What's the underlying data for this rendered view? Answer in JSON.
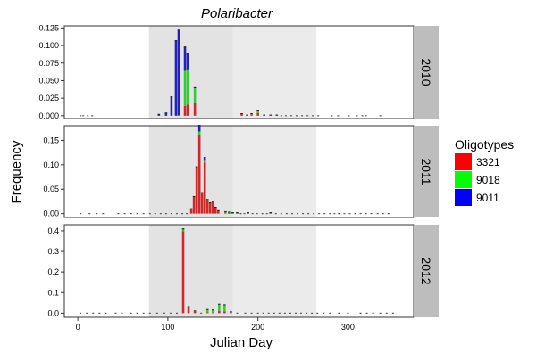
{
  "chart_data": {
    "type": "bar",
    "stacked": true,
    "title": "Polaribacter",
    "xlabel": "Julian Day",
    "ylabel": "Frequency",
    "xlim": [
      -15,
      373
    ],
    "x_ticks": [
      0,
      100,
      200,
      300
    ],
    "x_tick_labels": [
      "0",
      "100",
      "200",
      "300"
    ],
    "shaded_periods": [
      {
        "x": [
          79,
          172
        ],
        "color": "#e3e3e3"
      },
      {
        "x": [
          172,
          265
        ],
        "color": "#ebebeb"
      }
    ],
    "legend": {
      "title": "Oligotypes",
      "placement": "right",
      "entries": [
        {
          "label": "3321",
          "color": "#ff0000"
        },
        {
          "label": "9018",
          "color": "#00ff00"
        },
        {
          "label": "9011",
          "color": "#0000ff"
        }
      ]
    },
    "series_order": [
      "3321",
      "9018",
      "9011"
    ],
    "series_colors": {
      "3321": "#cc2a2a",
      "9018": "#33cc33",
      "9011": "#2222bb"
    },
    "facets": [
      {
        "label": "2010",
        "ylim": [
          -0.004,
          0.128
        ],
        "y_ticks": [
          0,
          0.025,
          0.05,
          0.075,
          0.1,
          0.125
        ],
        "y_tick_labels": [
          "0.000",
          "0.025",
          "0.050",
          "0.075",
          "0.100",
          "0.125"
        ],
        "bars": [
          {
            "x": 90,
            "v": [
              0,
              0,
              0.002
            ]
          },
          {
            "x": 98,
            "v": [
              0,
              0,
              0.004
            ]
          },
          {
            "x": 104,
            "v": [
              0,
              0,
              0.027
            ]
          },
          {
            "x": 109,
            "v": [
              0,
              0,
              0.107
            ]
          },
          {
            "x": 112,
            "v": [
              0.001,
              0,
              0.121
            ]
          },
          {
            "x": 119,
            "v": [
              0.014,
              0.05,
              0.034
            ]
          },
          {
            "x": 122,
            "v": [
              0.016,
              0.05,
              0.022
            ]
          },
          {
            "x": 130,
            "v": [
              0.018,
              0.021,
              0.001
            ]
          },
          {
            "x": 182,
            "v": [
              0.003,
              0,
              0
            ]
          },
          {
            "x": 188,
            "v": [
              0.001,
              0,
              0
            ]
          },
          {
            "x": 193,
            "v": [
              0.002,
              0.001,
              0
            ]
          },
          {
            "x": 200,
            "v": [
              0.004,
              0.003,
              0.001
            ]
          },
          {
            "x": 207,
            "v": [
              0.001,
              0,
              0
            ]
          },
          {
            "x": 214,
            "v": [
              0.001,
              0,
              0
            ]
          },
          {
            "x": 221,
            "v": [
              0.001,
              0,
              0
            ]
          }
        ],
        "zero_days": [
          3,
          6,
          11,
          16,
          226,
          231,
          237,
          243,
          249,
          255,
          261,
          267,
          282,
          289,
          301,
          310,
          316,
          320,
          336
        ]
      },
      {
        "label": "2011",
        "ylim": [
          -0.008,
          0.18
        ],
        "y_ticks": [
          0,
          0.05,
          0.1,
          0.15
        ],
        "y_tick_labels": [
          "0.00",
          "0.05",
          "0.10",
          "0.15"
        ],
        "bars": [
          {
            "x": 126,
            "v": [
              0.01,
              0,
              0
            ]
          },
          {
            "x": 129,
            "v": [
              0.035,
              0,
              0
            ]
          },
          {
            "x": 132,
            "v": [
              0.096,
              0,
              0
            ]
          },
          {
            "x": 135,
            "v": [
              0.16,
              0.008,
              0.013
            ]
          },
          {
            "x": 138,
            "v": [
              0.043,
              0,
              0
            ]
          },
          {
            "x": 141,
            "v": [
              0.105,
              0.003,
              0.007
            ]
          },
          {
            "x": 144,
            "v": [
              0.028,
              0.001,
              0
            ]
          },
          {
            "x": 147,
            "v": [
              0.022,
              0,
              0
            ]
          },
          {
            "x": 150,
            "v": [
              0.025,
              0,
              0
            ]
          },
          {
            "x": 153,
            "v": [
              0.013,
              0,
              0
            ]
          },
          {
            "x": 156,
            "v": [
              0.006,
              0,
              0
            ]
          },
          {
            "x": 164,
            "v": [
              0.002,
              0.002,
              0
            ]
          },
          {
            "x": 168,
            "v": [
              0.001,
              0.002,
              0
            ]
          },
          {
            "x": 172,
            "v": [
              0.001,
              0.001,
              0
            ]
          },
          {
            "x": 177,
            "v": [
              0.001,
              0.001,
              0
            ]
          },
          {
            "x": 189,
            "v": [
              0.001,
              0.001,
              0
            ]
          },
          {
            "x": 214,
            "v": [
              0.001,
              0.001,
              0
            ]
          }
        ],
        "zero_days": [
          3,
          13,
          21,
          28,
          45,
          52,
          59,
          66,
          73,
          80,
          86,
          92,
          98,
          104,
          110,
          116,
          121,
          181,
          185,
          194,
          199,
          205,
          210,
          220,
          226,
          232,
          238,
          244,
          250,
          256,
          262,
          268,
          274,
          280,
          285,
          290,
          296,
          302,
          308,
          314,
          320,
          326,
          333,
          339,
          345
        ]
      },
      {
        "label": "2012",
        "ylim": [
          -0.02,
          0.43
        ],
        "y_ticks": [
          0,
          0.1,
          0.2,
          0.3,
          0.4
        ],
        "y_tick_labels": [
          "0.0",
          "0.1",
          "0.2",
          "0.3",
          "0.4"
        ],
        "bars": [
          {
            "x": 117,
            "v": [
              0.398,
              0.009,
              0.003
            ]
          },
          {
            "x": 123,
            "v": [
              0.025,
              0.007,
              0
            ]
          },
          {
            "x": 130,
            "v": [
              0.008,
              0.003,
              0
            ]
          },
          {
            "x": 144,
            "v": [
              0.004,
              0.014,
              0
            ]
          },
          {
            "x": 150,
            "v": [
              0.003,
              0.013,
              0
            ]
          },
          {
            "x": 157,
            "v": [
              0.011,
              0.033,
              0
            ]
          },
          {
            "x": 163,
            "v": [
              0.009,
              0.032,
              0
            ]
          },
          {
            "x": 170,
            "v": [
              0.004,
              0.003,
              0
            ]
          }
        ],
        "zero_days": [
          3,
          10,
          17,
          24,
          31,
          42,
          49,
          59,
          66,
          73,
          80,
          88,
          96,
          103,
          110,
          137,
          177,
          186,
          193,
          200,
          206,
          212,
          218,
          224,
          230,
          236,
          242,
          248,
          254,
          260,
          266,
          273,
          280,
          290,
          300,
          314,
          321,
          328,
          336,
          343,
          350
        ]
      }
    ]
  }
}
